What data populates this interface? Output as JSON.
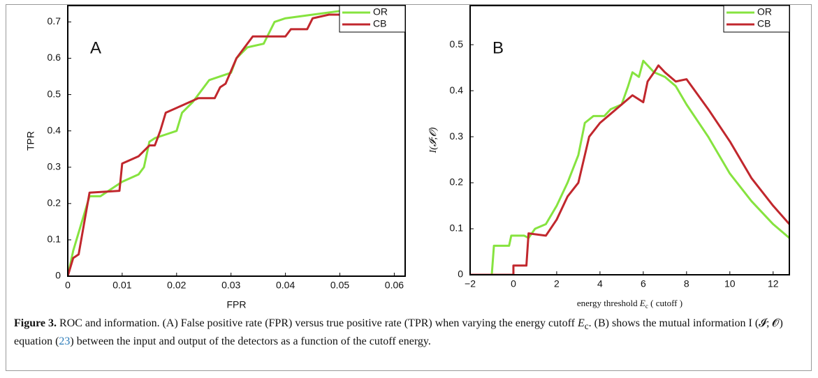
{
  "chart_data": [
    {
      "type": "line",
      "panel": "A",
      "x_label": "FPR",
      "y_label": "TPR",
      "xlim": [
        0,
        0.062
      ],
      "ylim": [
        0,
        0.745
      ],
      "xticks": [
        0,
        0.01,
        0.02,
        0.03,
        0.04,
        0.05,
        0.06
      ],
      "yticks": [
        0,
        0.1,
        0.2,
        0.3,
        0.4,
        0.5,
        0.6,
        0.7
      ],
      "legend": "upper right",
      "series": [
        {
          "name": "OR",
          "color": "#86e33f",
          "x": [
            0,
            0.001,
            0.004,
            0.006,
            0.01,
            0.013,
            0.014,
            0.015,
            0.016,
            0.018,
            0.02,
            0.021,
            0.023,
            0.026,
            0.03,
            0.031,
            0.033,
            0.036,
            0.038,
            0.04,
            0.045,
            0.05,
            0.055
          ],
          "values": [
            0,
            0.07,
            0.22,
            0.22,
            0.26,
            0.28,
            0.3,
            0.37,
            0.38,
            0.39,
            0.4,
            0.45,
            0.48,
            0.54,
            0.56,
            0.6,
            0.63,
            0.64,
            0.7,
            0.71,
            0.72,
            0.73,
            0.745
          ]
        },
        {
          "name": "CB",
          "color": "#c1272d",
          "x": [
            0,
            0.001,
            0.002,
            0.004,
            0.0095,
            0.01,
            0.013,
            0.015,
            0.016,
            0.017,
            0.018,
            0.021,
            0.024,
            0.027,
            0.028,
            0.029,
            0.031,
            0.034,
            0.04,
            0.041,
            0.044,
            0.045,
            0.048,
            0.055,
            0.056
          ],
          "values": [
            0,
            0.05,
            0.06,
            0.23,
            0.235,
            0.31,
            0.33,
            0.36,
            0.36,
            0.4,
            0.45,
            0.47,
            0.49,
            0.49,
            0.52,
            0.53,
            0.6,
            0.66,
            0.66,
            0.68,
            0.68,
            0.71,
            0.72,
            0.72,
            0.745
          ]
        }
      ]
    },
    {
      "type": "line",
      "panel": "B",
      "x_label": "energy threshold ",
      "x_label_symbol": "E",
      "x_label_subscript": "c",
      "x_label_suffix": " ( cutoff )",
      "y_label": "I(𝓘;𝓞)",
      "xlim": [
        -2,
        12.75
      ],
      "ylim": [
        0,
        0.585
      ],
      "xticks": [
        {
          "value": -2,
          "label": "−2"
        },
        0,
        2,
        4,
        6,
        8,
        10,
        12
      ],
      "yticks": [
        0,
        0.1,
        0.2,
        0.3,
        0.4,
        0.5
      ],
      "legend": "upper right",
      "series": [
        {
          "name": "OR",
          "color": "#86e33f",
          "x": [
            -2,
            -1,
            -0.9,
            -0.2,
            -0.1,
            0.5,
            0.7,
            1,
            1.5,
            2,
            2.5,
            3,
            3.3,
            3.7,
            4.2,
            4.5,
            5,
            5.3,
            5.5,
            5.8,
            6,
            6.2,
            6.5,
            7,
            7.5,
            8,
            9,
            10,
            11,
            12,
            12.75
          ],
          "values": [
            0,
            0,
            0.063,
            0.063,
            0.085,
            0.085,
            0.08,
            0.1,
            0.11,
            0.15,
            0.2,
            0.26,
            0.33,
            0.345,
            0.345,
            0.36,
            0.37,
            0.41,
            0.44,
            0.43,
            0.465,
            0.455,
            0.44,
            0.43,
            0.41,
            0.37,
            0.3,
            0.22,
            0.16,
            0.11,
            0.08
          ]
        },
        {
          "name": "CB",
          "color": "#c1272d",
          "x": [
            -2,
            0,
            0,
            0.6,
            0.7,
            1.5,
            2,
            2.5,
            3,
            3.5,
            4,
            4.5,
            5,
            5.5,
            6,
            6.2,
            6.5,
            6.7,
            7,
            7.5,
            8,
            9,
            10,
            11,
            12,
            12.75
          ],
          "values": [
            0,
            0,
            0.02,
            0.02,
            0.09,
            0.085,
            0.12,
            0.17,
            0.2,
            0.3,
            0.33,
            0.35,
            0.37,
            0.39,
            0.375,
            0.42,
            0.44,
            0.455,
            0.44,
            0.42,
            0.425,
            0.36,
            0.29,
            0.21,
            0.15,
            0.11
          ]
        }
      ]
    }
  ],
  "caption": {
    "label": "Figure 3.",
    "text_before": " ROC and information. (A) False positive rate (FPR) versus true positive rate (TPR) when varying the energy cutoff ",
    "symbol": "E",
    "subscript": "c",
    "text_middle": ". (B) shows the mutual information I (𝓘; 𝓞) equation (",
    "reference": "23",
    "text_after": ") between the input and output of the detectors as a function of the cutoff energy."
  }
}
